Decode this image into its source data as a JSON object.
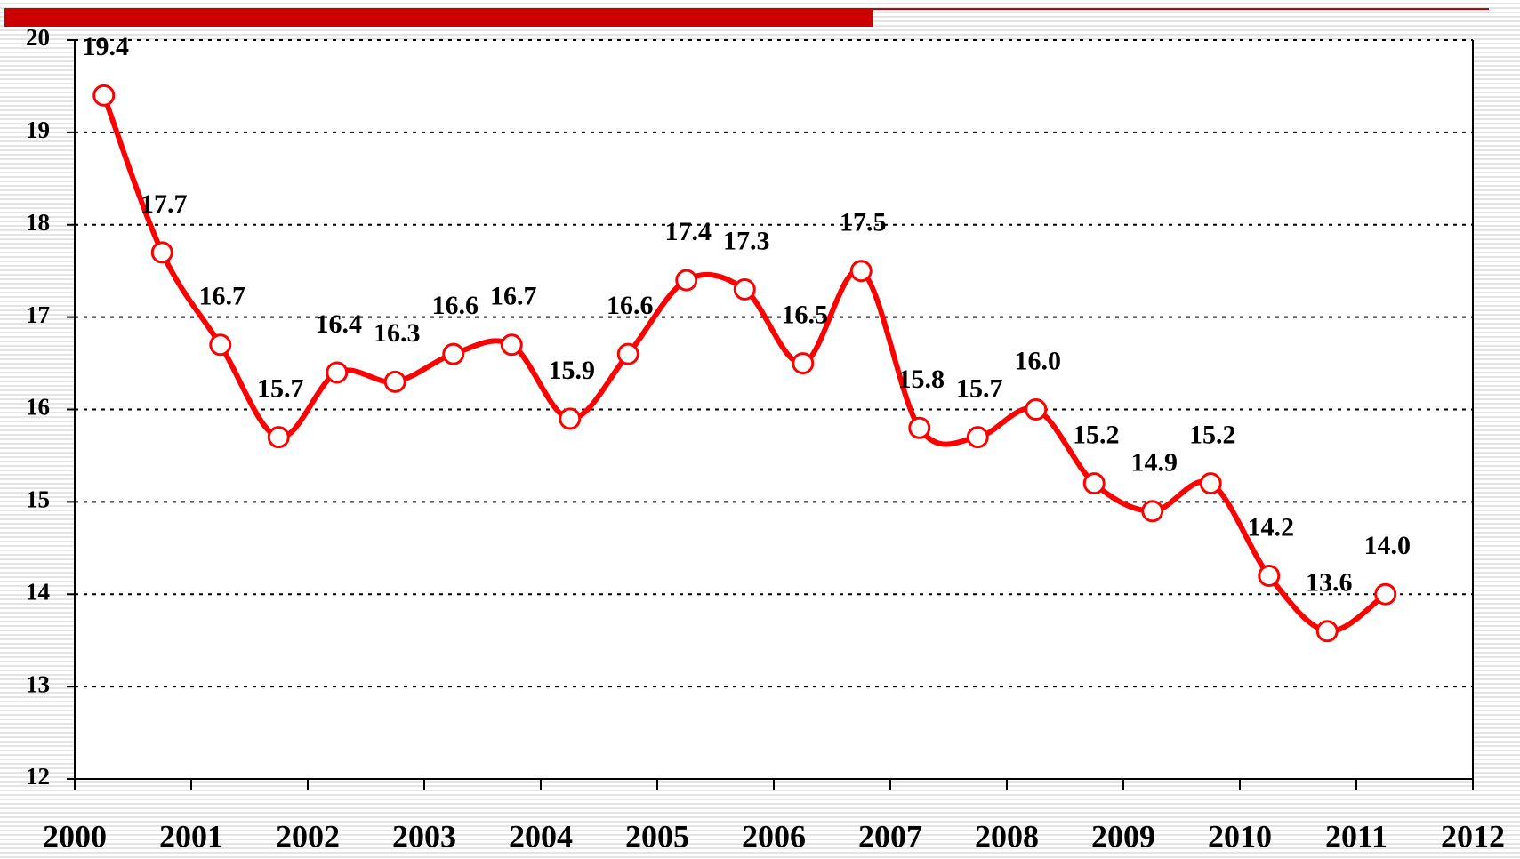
{
  "chart_data": {
    "type": "line",
    "x": [
      2000.25,
      2000.75,
      2001.25,
      2001.75,
      2002.25,
      2002.75,
      2003.25,
      2003.75,
      2004.25,
      2004.75,
      2005.25,
      2005.75,
      2006.25,
      2006.75,
      2007.25,
      2007.75,
      2008.25,
      2008.75,
      2009.25,
      2009.75,
      2010.25,
      2010.75,
      2011.25
    ],
    "values": [
      19.4,
      17.7,
      16.7,
      15.7,
      16.4,
      16.3,
      16.6,
      16.7,
      15.9,
      16.6,
      17.4,
      17.3,
      16.5,
      17.5,
      15.8,
      15.7,
      16.0,
      15.2,
      14.9,
      15.2,
      14.2,
      13.6,
      14.0
    ],
    "value_labels": [
      "19.4",
      "17.7",
      "16.7",
      "15.7",
      "16.4",
      "16.3",
      "16.6",
      "16.7",
      "15.9",
      "16.6",
      "17.4",
      "17.3",
      "16.5",
      "17.5",
      "15.8",
      "15.7",
      "16.0",
      "15.2",
      "14.9",
      "15.2",
      "14.2",
      "13.6",
      "14.0"
    ],
    "color": "#ff0000",
    "xlim": [
      2000,
      2012
    ],
    "xticks": [
      2000,
      2001,
      2002,
      2003,
      2004,
      2005,
      2006,
      2007,
      2008,
      2009,
      2010,
      2011,
      2012
    ],
    "ylim": [
      12,
      20
    ],
    "yticks": [
      12,
      13,
      14,
      15,
      16,
      17,
      18,
      19,
      20
    ],
    "grid": true
  }
}
